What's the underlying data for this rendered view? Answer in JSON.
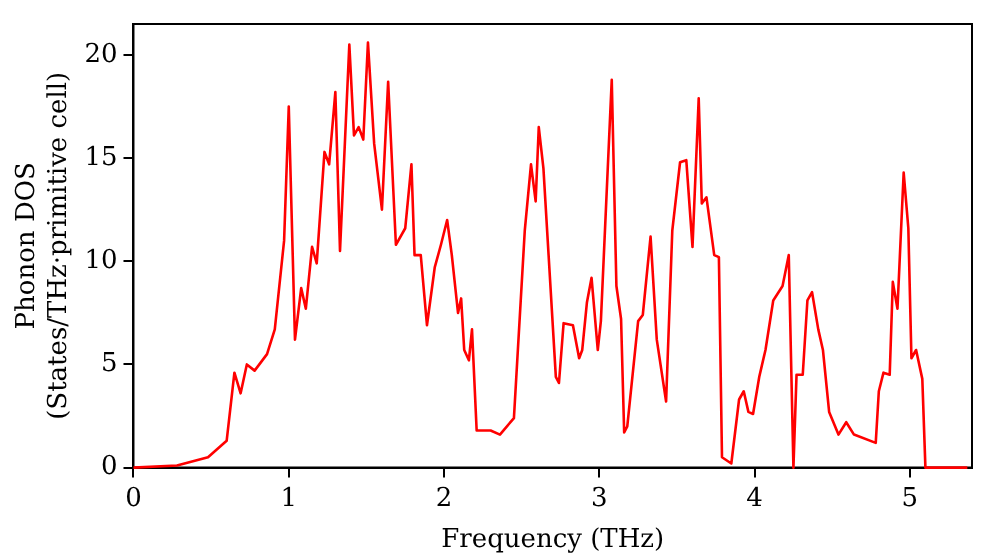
{
  "chart_data": {
    "type": "line",
    "xlabel": "Frequency (THz)",
    "ylabel": [
      "Phonon DOS",
      "(States/THz·primitive cell)"
    ],
    "x": [
      0,
      0.28,
      0.48,
      0.6,
      0.65,
      0.69,
      0.73,
      0.78,
      0.86,
      0.91,
      0.97,
      1.0,
      1.04,
      1.08,
      1.11,
      1.15,
      1.18,
      1.23,
      1.26,
      1.3,
      1.33,
      1.39,
      1.42,
      1.45,
      1.48,
      1.51,
      1.55,
      1.6,
      1.64,
      1.69,
      1.75,
      1.79,
      1.81,
      1.85,
      1.89,
      1.94,
      1.98,
      2.02,
      2.05,
      2.09,
      2.11,
      2.13,
      2.16,
      2.18,
      2.21,
      2.3,
      2.36,
      2.45,
      2.52,
      2.56,
      2.59,
      2.61,
      2.64,
      2.72,
      2.74,
      2.77,
      2.83,
      2.87,
      2.89,
      2.92,
      2.95,
      2.99,
      3.01,
      3.08,
      3.11,
      3.14,
      3.16,
      3.18,
      3.25,
      3.28,
      3.33,
      3.37,
      3.43,
      3.47,
      3.52,
      3.56,
      3.6,
      3.64,
      3.66,
      3.69,
      3.74,
      3.77,
      3.79,
      3.85,
      3.9,
      3.93,
      3.96,
      3.99,
      4.03,
      4.07,
      4.12,
      4.18,
      4.22,
      4.25,
      4.27,
      4.31,
      4.34,
      4.37,
      4.41,
      4.44,
      4.48,
      4.54,
      4.59,
      4.64,
      4.78,
      4.8,
      4.83,
      4.87,
      4.89,
      4.92,
      4.96,
      4.99,
      5.01,
      5.04,
      5.08,
      5.1,
      5.37
    ],
    "series": [
      {
        "color": "#ff0000",
        "values": [
          0,
          0.1,
          0.5,
          1.3,
          4.6,
          3.6,
          5.0,
          4.7,
          5.5,
          6.7,
          11,
          17.5,
          6.2,
          8.7,
          7.7,
          10.7,
          9.9,
          15.3,
          14.7,
          18.2,
          10.5,
          20.5,
          16.1,
          16.5,
          15.9,
          20.6,
          15.7,
          12.5,
          18.7,
          10.8,
          11.6,
          14.7,
          10.3,
          10.3,
          6.9,
          9.7,
          10.8,
          12.0,
          10.3,
          7.5,
          8.2,
          5.7,
          5.2,
          6.7,
          1.8,
          1.8,
          1.6,
          2.4,
          11.5,
          14.7,
          12.9,
          16.5,
          14.5,
          4.4,
          4.1,
          7.0,
          6.9,
          5.3,
          5.7,
          8.0,
          9.2,
          5.7,
          7.1,
          18.8,
          8.8,
          7.2,
          1.7,
          2.0,
          7.1,
          7.4,
          11.2,
          6.2,
          3.2,
          11.5,
          14.8,
          14.9,
          10.7,
          17.9,
          12.8,
          13.1,
          10.3,
          10.2,
          0.5,
          0.2,
          3.3,
          3.7,
          2.7,
          2.6,
          4.4,
          5.7,
          8.1,
          8.8,
          10.3,
          0,
          4.5,
          4.5,
          8.1,
          8.5,
          6.7,
          5.7,
          2.7,
          1.6,
          2.2,
          1.6,
          1.2,
          3.7,
          4.6,
          4.5,
          9.0,
          7.7,
          14.3,
          11.6,
          5.3,
          5.7,
          4.3,
          0,
          0
        ]
      }
    ],
    "xlim": [
      0,
      5.4
    ],
    "ylim": [
      0,
      21.5
    ],
    "xticks": [
      0,
      1,
      2,
      3,
      4,
      5
    ],
    "yticks": [
      0,
      5,
      10,
      15,
      20
    ],
    "grid": false,
    "legend": false,
    "marker": "none",
    "line_style": "solid"
  }
}
